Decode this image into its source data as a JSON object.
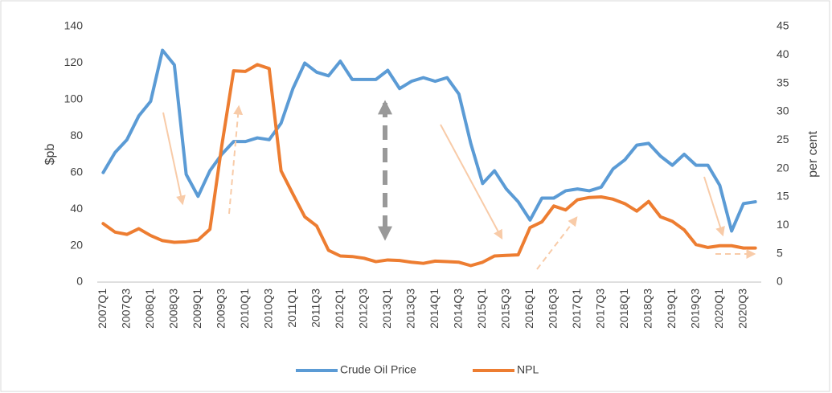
{
  "chart_data": {
    "type": "line",
    "ylabel": "$pb",
    "y2label": "per cent",
    "categories": [
      "2007Q1",
      null,
      "2007Q3",
      null,
      "2008Q1",
      null,
      "2008Q3",
      null,
      "2009Q1",
      null,
      "2009Q3",
      null,
      "2010Q1",
      null,
      "2010Q3",
      null,
      "2011Q1",
      null,
      "2011Q3",
      null,
      "2012Q1",
      null,
      "2012Q3",
      null,
      "2013Q1",
      null,
      "2013Q3",
      null,
      "2014Q1",
      null,
      "2014Q3",
      null,
      "2015Q1",
      null,
      "2015Q3",
      null,
      "2016Q1",
      null,
      "2016Q3",
      null,
      "2017Q1",
      null,
      "2017Q3",
      null,
      "2018Q1",
      null,
      "2018Q3",
      null,
      "2019Q1",
      null,
      "2019Q3",
      null,
      "2020Q1",
      null,
      "2020Q3",
      null
    ],
    "series": [
      {
        "name": "Crude Oil Price",
        "color": "#5b9bd5",
        "values": [
          60,
          71,
          78,
          91,
          99,
          127,
          119,
          59,
          47,
          61,
          70,
          77,
          77,
          79,
          78,
          87,
          106,
          120,
          115,
          113,
          121,
          111,
          111,
          111,
          116,
          106,
          110,
          112,
          110,
          112,
          103,
          76,
          54,
          61,
          51,
          44,
          34,
          46,
          46,
          50,
          51,
          50,
          52,
          62,
          67,
          75,
          76,
          69,
          64,
          70,
          64,
          64,
          53,
          28,
          43,
          44
        ]
      },
      {
        "name": "NPL",
        "color": "#ed7d31",
        "axis": "y2",
        "values": [
          10.3,
          8.8,
          8.4,
          9.4,
          8.2,
          7.3,
          7.0,
          7.1,
          7.4,
          9.3,
          24,
          37.2,
          37.1,
          38.3,
          37.6,
          19.6,
          15.5,
          11.5,
          9.9,
          5.6,
          4.6,
          4.5,
          4.2,
          3.6,
          3.9,
          3.8,
          3.5,
          3.3,
          3.7,
          3.6,
          3.5,
          2.9,
          3.5,
          4.6,
          4.7,
          4.8,
          9.6,
          10.6,
          13.4,
          12.7,
          14.5,
          14.9,
          15.0,
          14.6,
          13.8,
          12.5,
          14.2,
          11.5,
          10.7,
          9.2,
          6.6,
          6.1,
          6.4,
          6.4,
          6.0,
          6.0
        ]
      }
    ],
    "ylim": [
      0,
      140
    ],
    "yticks": [
      0,
      20,
      40,
      60,
      80,
      100,
      120,
      140
    ],
    "y2lim": [
      0,
      45
    ],
    "y2ticks": [
      0,
      5,
      10,
      15,
      20,
      25,
      30,
      35,
      40,
      45
    ],
    "grid": false,
    "legend": "bottom"
  }
}
